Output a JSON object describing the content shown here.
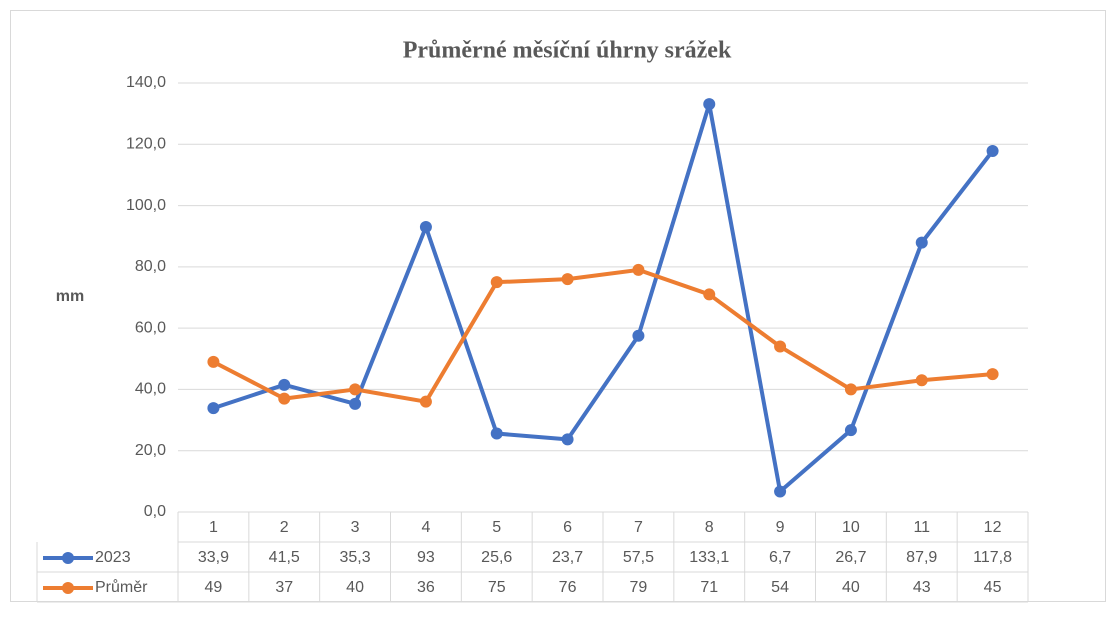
{
  "chart_data": {
    "type": "line",
    "title": "Průměrné měsíční úhrny srážek",
    "y_label": "mm",
    "categories": [
      "1",
      "2",
      "3",
      "4",
      "5",
      "6",
      "7",
      "8",
      "9",
      "10",
      "11",
      "12"
    ],
    "series": [
      {
        "name": "2023",
        "color": "#4472c4",
        "values": [
          33.9,
          41.5,
          35.3,
          93,
          25.6,
          23.7,
          57.5,
          133.1,
          6.7,
          26.7,
          87.9,
          117.8
        ],
        "value_labels": [
          "33,9",
          "41,5",
          "35,3",
          "93",
          "25,6",
          "23,7",
          "57,5",
          "133,1",
          "6,7",
          "26,7",
          "87,9",
          "117,8"
        ]
      },
      {
        "name": "Průměr",
        "color": "#ed7d31",
        "values": [
          49,
          37,
          40,
          36,
          75,
          76,
          79,
          71,
          54,
          40,
          43,
          45
        ]
      }
    ],
    "ylim": [
      0,
      140
    ],
    "yticks": [
      {
        "value": 0,
        "label": "0,0"
      },
      {
        "value": 20,
        "label": "20,0"
      },
      {
        "value": 40,
        "label": "40,0"
      },
      {
        "value": 60,
        "label": "60,0"
      },
      {
        "value": 80,
        "label": "80,0"
      },
      {
        "value": 100,
        "label": "100,0"
      },
      {
        "value": 120,
        "label": "120,0"
      },
      {
        "value": 140,
        "label": "140,0"
      }
    ],
    "grid": true,
    "data_table": true
  }
}
